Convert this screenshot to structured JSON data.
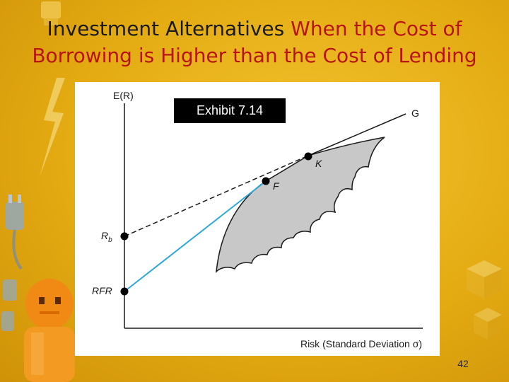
{
  "slide": {
    "title_part1": "Investment Alternatives",
    "title_part2": "When the Cost of Borrowing is Higher than the Cost of Lending",
    "page_number": "42"
  },
  "diagram": {
    "exhibit_label": "Exhibit 7.14",
    "y_axis_label": "E(R)",
    "x_axis_label": "Risk (Standard Deviation σ)",
    "points": {
      "g": "G",
      "k": "K",
      "f": "F",
      "rb": "R",
      "rb_sub": "b",
      "rfr": "RFR"
    }
  },
  "colors": {
    "background": "#e4ab12",
    "title_red": "#b81414",
    "lending_line": "#2aa8d8",
    "frontier_fill": "#c8c8c8"
  }
}
